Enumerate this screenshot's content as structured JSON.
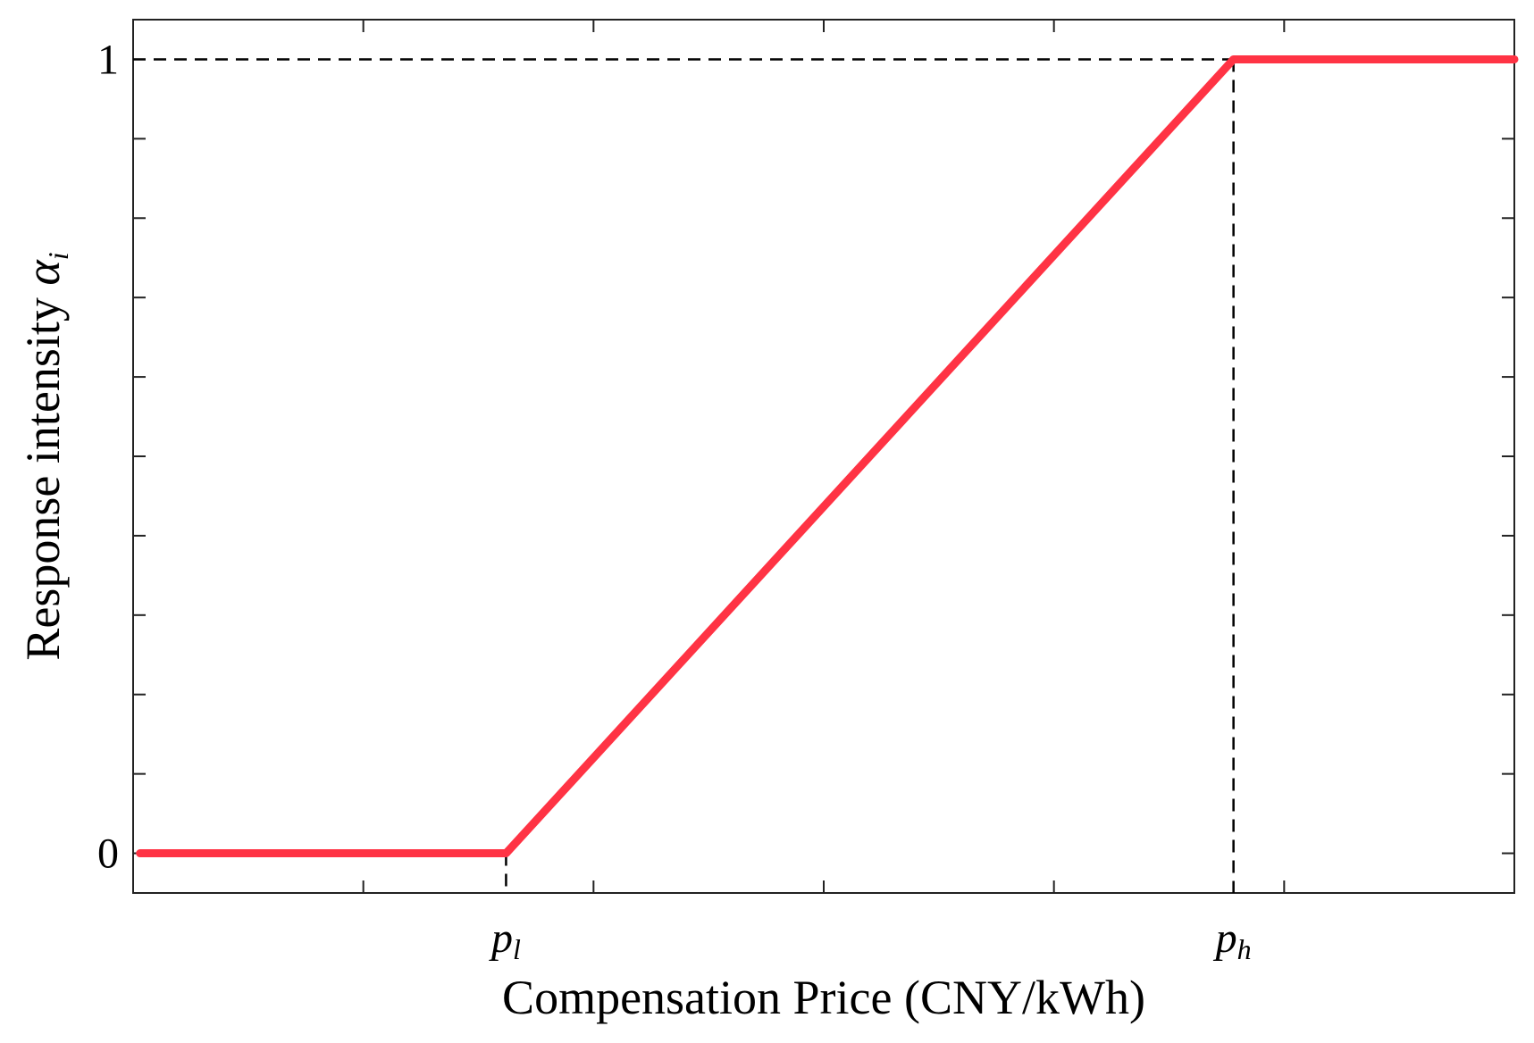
{
  "chart_data": {
    "type": "line",
    "x_label": "Compensation Price (CNY/kWh)",
    "y_label": "Response intensity",
    "y_label_symbol": "α",
    "y_label_sub": "i",
    "x": [
      0.03,
      1.62,
      4.78,
      6
    ],
    "series": [
      {
        "color": "#ff3344",
        "values": [
          0,
          0,
          1,
          1
        ]
      }
    ],
    "xlim": [
      0,
      6
    ],
    "xticks": [
      {
        "value": 1.62,
        "label": "p",
        "sub": "l"
      },
      {
        "value": 4.78,
        "label": "p",
        "sub": "h"
      }
    ],
    "xminorticks": [
      1,
      2,
      3,
      4,
      5
    ],
    "ylim": [
      -0.05,
      1.05
    ],
    "yticks": [
      0,
      1
    ],
    "yminorticks": [
      0.1,
      0.2,
      0.3,
      0.4,
      0.5,
      0.6,
      0.7,
      0.8,
      0.9
    ]
  }
}
